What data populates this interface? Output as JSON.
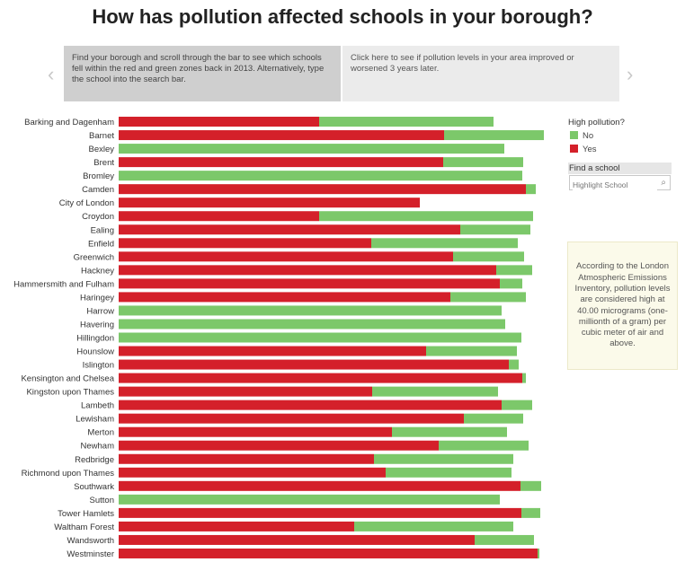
{
  "title": "How has pollution affected schools in your borough?",
  "story": {
    "point1": "Find your borough and scroll through the bar to see which schools fell within the red and green zones back in 2013. Alternatively, type the school into the search bar.",
    "point2": "Click here to see if pollution levels in your area improved or worsened 3 years later."
  },
  "nav": {
    "prev": "‹",
    "next": "›"
  },
  "legend": {
    "title": "High pollution?",
    "items": [
      {
        "label": "No",
        "color": "#7cc86a"
      },
      {
        "label": "Yes",
        "color": "#d4202a"
      }
    ]
  },
  "filter": {
    "title": "Find a school",
    "placeholder": "Highlight School",
    "icon": "search-icon"
  },
  "note": "According to the London Atmospheric Emissions Inventory, pollution levels are considered high at 40.00 micrograms (one-millionth of a gram) per cubic meter of air and above.",
  "chart_data": {
    "type": "bar",
    "orientation": "horizontal",
    "stacked": true,
    "title": "How has pollution affected schools in your borough?",
    "xlabel": "",
    "ylabel": "",
    "categories": [
      "Barking and Dagenham",
      "Barnet",
      "Bexley",
      "Brent",
      "Bromley",
      "Camden",
      "City of London",
      "Croydon",
      "Ealing",
      "Enfield",
      "Greenwich",
      "Hackney",
      "Hammersmith and Fulham",
      "Haringey",
      "Harrow",
      "Havering",
      "Hillingdon",
      "Hounslow",
      "Islington",
      "Kensington and Chelsea",
      "Kingston upon Thames",
      "Lambeth",
      "Lewisham",
      "Merton",
      "Newham",
      "Redbridge",
      "Richmond upon Thames",
      "Southwark",
      "Sutton",
      "Tower Hamlets",
      "Waltham Forest",
      "Wandsworth",
      "Westminster"
    ],
    "series": [
      {
        "name": "Yes",
        "color": "#d4202a",
        "values": [
          223,
          362,
          0,
          361,
          0,
          453,
          335,
          223,
          380,
          281,
          372,
          420,
          424,
          369,
          0,
          0,
          0,
          342,
          434,
          449,
          282,
          426,
          384,
          304,
          356,
          284,
          297,
          447,
          0,
          448,
          262,
          396,
          466
        ]
      },
      {
        "name": "No",
        "color": "#7cc86a",
        "values": [
          194,
          111,
          429,
          89,
          449,
          11,
          0,
          238,
          78,
          163,
          79,
          40,
          25,
          84,
          426,
          430,
          448,
          101,
          11,
          4,
          140,
          34,
          66,
          128,
          100,
          155,
          140,
          23,
          424,
          21,
          177,
          66,
          2
        ]
      }
    ],
    "xlim": [
      0,
      480
    ],
    "units": "approximate school counts estimated from bar lengths (no axis shown)"
  }
}
